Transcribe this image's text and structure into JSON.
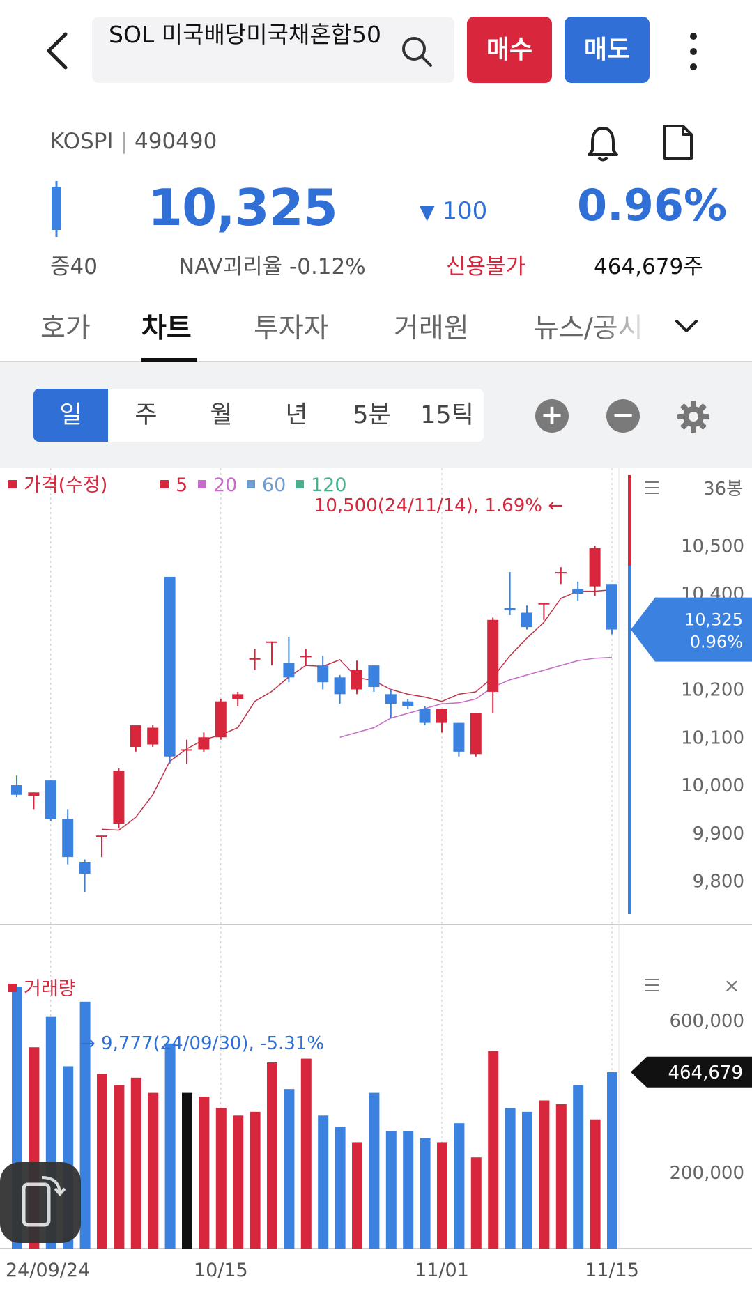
{
  "header": {
    "title": "SOL 미국배당미국채혼합50",
    "buy_label": "매수",
    "sell_label": "매도"
  },
  "info": {
    "market": "KOSPI",
    "code": "490490",
    "price": "10,325",
    "change": "100",
    "change_pct": "0.96%",
    "margin": "증40",
    "nav_label": "NAV괴리율 -0.12%",
    "credit": "신용불가",
    "volume": "464,679주"
  },
  "tabs": [
    "호가",
    "차트",
    "투자자",
    "거래원",
    "뉴스/공시"
  ],
  "periods": [
    "일",
    "주",
    "월",
    "년",
    "5분",
    "15틱"
  ],
  "colors": {
    "up": "#d8273d",
    "down": "#3b82e0",
    "ma5": "#c0344a",
    "ma20": "#c46cc8",
    "ma60": "#6f9bd1",
    "ma120": "#4caf8c"
  },
  "chart_data": [
    {
      "type": "candlestick",
      "legend": [
        {
          "label": "가격(수정)",
          "color": "#d8273d"
        },
        {
          "label": "5",
          "color": "#d8273d"
        },
        {
          "label": "20",
          "color": "#c46cc8"
        },
        {
          "label": "60",
          "color": "#6f9bd1"
        },
        {
          "label": "120",
          "color": "#4caf8c"
        }
      ],
      "count_label": "36봉",
      "y_ticks": [
        10500,
        10400,
        10200,
        10100,
        10000,
        9900,
        9800
      ],
      "y_tick_labels": [
        "10,500",
        "10,400",
        "10,200",
        "10,100",
        "10,000",
        "9,900",
        "9,800"
      ],
      "ylim": [
        9760,
        10560
      ],
      "x_tick_labels": [
        "24/09/24",
        "10/15",
        "11/01",
        "11/15"
      ],
      "x_tick_index": [
        2,
        12,
        25,
        35
      ],
      "current_price_label": "10,325",
      "current_pct_label": "0.96%",
      "current_price": 10325,
      "high_annotation": "10,500(24/11/14), 1.69%",
      "high_value": 10500,
      "high_index": 34,
      "low_annotation": "9,777(24/09/30), -5.31%",
      "low_value": 9777,
      "low_index": 4,
      "candles": [
        {
          "o": 10000,
          "h": 10020,
          "l": 9975,
          "c": 9980
        },
        {
          "o": 9978,
          "h": 9985,
          "l": 9950,
          "c": 9985
        },
        {
          "o": 10010,
          "h": 10010,
          "l": 9925,
          "c": 9930
        },
        {
          "o": 9930,
          "h": 9950,
          "l": 9835,
          "c": 9850
        },
        {
          "o": 9840,
          "h": 9845,
          "l": 9777,
          "c": 9815
        },
        {
          "o": 9895,
          "h": 9895,
          "l": 9850,
          "c": 9895
        },
        {
          "o": 9920,
          "h": 10035,
          "l": 9910,
          "c": 10030
        },
        {
          "o": 10080,
          "h": 10125,
          "l": 10070,
          "c": 10125
        },
        {
          "o": 10085,
          "h": 10125,
          "l": 10080,
          "c": 10120
        },
        {
          "o": 10435,
          "h": 10435,
          "l": 10045,
          "c": 10060
        },
        {
          "o": 10075,
          "h": 10095,
          "l": 10045,
          "c": 10075
        },
        {
          "o": 10075,
          "h": 10110,
          "l": 10070,
          "c": 10100
        },
        {
          "o": 10100,
          "h": 10180,
          "l": 10095,
          "c": 10175
        },
        {
          "o": 10180,
          "h": 10195,
          "l": 10165,
          "c": 10190
        },
        {
          "o": 10265,
          "h": 10285,
          "l": 10240,
          "c": 10265
        },
        {
          "o": 10300,
          "h": 10300,
          "l": 10250,
          "c": 10300
        },
        {
          "o": 10255,
          "h": 10310,
          "l": 10215,
          "c": 10225
        },
        {
          "o": 10270,
          "h": 10285,
          "l": 10250,
          "c": 10270
        },
        {
          "o": 10250,
          "h": 10270,
          "l": 10200,
          "c": 10215
        },
        {
          "o": 10225,
          "h": 10230,
          "l": 10170,
          "c": 10190
        },
        {
          "o": 10200,
          "h": 10260,
          "l": 10190,
          "c": 10240
        },
        {
          "o": 10250,
          "h": 10250,
          "l": 10195,
          "c": 10205
        },
        {
          "o": 10190,
          "h": 10200,
          "l": 10140,
          "c": 10170
        },
        {
          "o": 10175,
          "h": 10180,
          "l": 10160,
          "c": 10165
        },
        {
          "o": 10160,
          "h": 10165,
          "l": 10125,
          "c": 10130
        },
        {
          "o": 10130,
          "h": 10160,
          "l": 10110,
          "c": 10160
        },
        {
          "o": 10130,
          "h": 10130,
          "l": 10060,
          "c": 10070
        },
        {
          "o": 10065,
          "h": 10150,
          "l": 10060,
          "c": 10150
        },
        {
          "o": 10195,
          "h": 10350,
          "l": 10150,
          "c": 10345
        },
        {
          "o": 10370,
          "h": 10445,
          "l": 10355,
          "c": 10365
        },
        {
          "o": 10360,
          "h": 10375,
          "l": 10325,
          "c": 10330
        },
        {
          "o": 10380,
          "h": 10380,
          "l": 10345,
          "c": 10380
        },
        {
          "o": 10445,
          "h": 10455,
          "l": 10420,
          "c": 10445
        },
        {
          "o": 10410,
          "h": 10425,
          "l": 10385,
          "c": 10400
        },
        {
          "o": 10415,
          "h": 10500,
          "l": 10395,
          "c": 10495
        },
        {
          "o": 10420,
          "h": 10420,
          "l": 10315,
          "c": 10325
        }
      ],
      "ma5": [
        null,
        null,
        null,
        null,
        null,
        9908,
        9906,
        9933,
        9980,
        10050,
        10076,
        10095,
        10105,
        10120,
        10175,
        10196,
        10226,
        10250,
        10248,
        10262,
        10225,
        10218,
        10200,
        10190,
        10184,
        10175,
        10190,
        10195,
        10225,
        10270,
        10307,
        10340,
        10390,
        10405,
        10405,
        10408
      ],
      "ma20": [
        null,
        null,
        null,
        null,
        null,
        null,
        null,
        null,
        null,
        null,
        null,
        null,
        null,
        null,
        null,
        null,
        null,
        null,
        null,
        10100,
        10110,
        10120,
        10140,
        10150,
        10160,
        10170,
        10172,
        10180,
        10205,
        10220,
        10230,
        10240,
        10250,
        10260,
        10265,
        10267
      ]
    },
    {
      "type": "bar",
      "legend": [
        {
          "label": "거래량",
          "color": "#d8273d"
        }
      ],
      "y_ticks": [
        600000,
        200000
      ],
      "y_tick_labels": [
        "600,000",
        "200,000"
      ],
      "ylim": [
        0,
        780000
      ],
      "current_volume_label": "464,679",
      "current_volume": 464679,
      "values": [
        690000,
        530000,
        610000,
        480000,
        650000,
        460000,
        430000,
        450000,
        410000,
        540000,
        410000,
        400000,
        370000,
        350000,
        360000,
        490000,
        420000,
        500000,
        350000,
        320000,
        280000,
        410000,
        310000,
        310000,
        290000,
        280000,
        330000,
        240000,
        520000,
        370000,
        360000,
        390000,
        380000,
        430000,
        340000,
        464679
      ],
      "highlight_index": 10
    }
  ]
}
